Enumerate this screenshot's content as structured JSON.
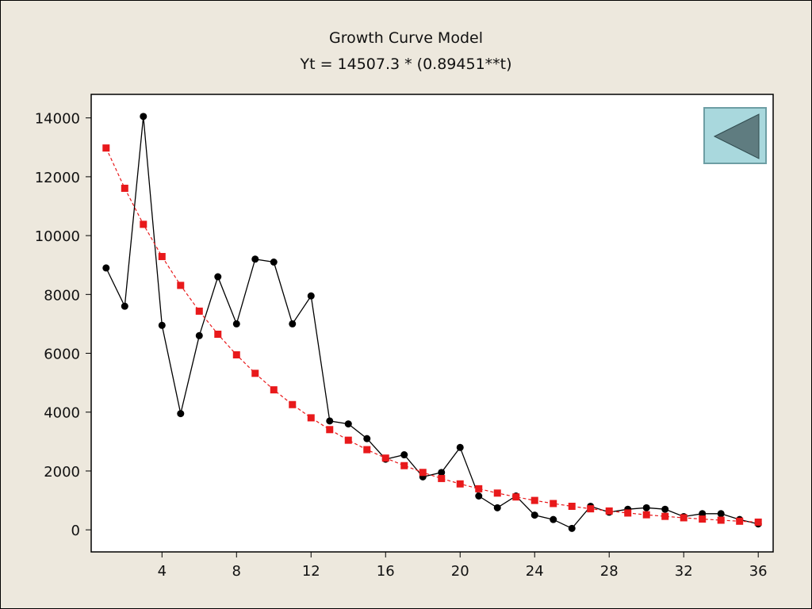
{
  "chart_data": {
    "type": "line",
    "title": "Growth Curve Model",
    "subtitle": "Yt = 14507.3 * (0.89451**t)",
    "xlabel": "",
    "ylabel": "",
    "xlim": [
      0.2,
      36.8
    ],
    "ylim": [
      -750,
      14800
    ],
    "x_ticks": [
      4,
      8,
      12,
      16,
      20,
      24,
      28,
      32,
      36
    ],
    "y_ticks": [
      0,
      2000,
      4000,
      6000,
      8000,
      10000,
      12000,
      14000
    ],
    "grid": false,
    "series": [
      {
        "color": "#000000",
        "marker": "circle",
        "line": "solid",
        "x": [
          1,
          2,
          3,
          4,
          5,
          6,
          7,
          8,
          9,
          10,
          11,
          12,
          13,
          14,
          15,
          16,
          17,
          18,
          19,
          20,
          21,
          22,
          23,
          24,
          25,
          26,
          27,
          28,
          29,
          30,
          31,
          32,
          33,
          34,
          35,
          36
        ],
        "y": [
          8900,
          7600,
          14050,
          6950,
          3950,
          6600,
          8600,
          7000,
          9200,
          9100,
          7000,
          7950,
          3700,
          3600,
          3100,
          2400,
          2550,
          1800,
          1950,
          2800,
          1150,
          750,
          1150,
          500,
          350,
          50,
          800,
          600,
          700,
          750,
          700,
          450,
          550,
          550,
          350,
          200
        ]
      },
      {
        "color": "#e8191b",
        "marker": "square",
        "line": "dashed",
        "x": [
          1,
          2,
          3,
          4,
          5,
          6,
          7,
          8,
          9,
          10,
          11,
          12,
          13,
          14,
          15,
          16,
          17,
          18,
          19,
          20,
          21,
          22,
          23,
          24,
          25,
          26,
          27,
          28,
          29,
          30,
          31,
          32,
          33,
          34,
          35,
          36
        ],
        "y": [
          12977,
          11608,
          10383,
          9288,
          8308,
          7432,
          6648,
          5947,
          5319,
          4758,
          4256,
          3807,
          3406,
          3046,
          2725,
          2438,
          2181,
          1951,
          1745,
          1561,
          1396,
          1249,
          1117,
          999,
          894,
          800,
          715,
          640,
          572,
          512,
          458,
          410,
          366,
          328,
          293,
          262
        ]
      }
    ]
  },
  "nav_button": {
    "icon": "triangle-left-icon",
    "fill": "#a9d8dd",
    "arrow_color": "#5f7c80"
  }
}
